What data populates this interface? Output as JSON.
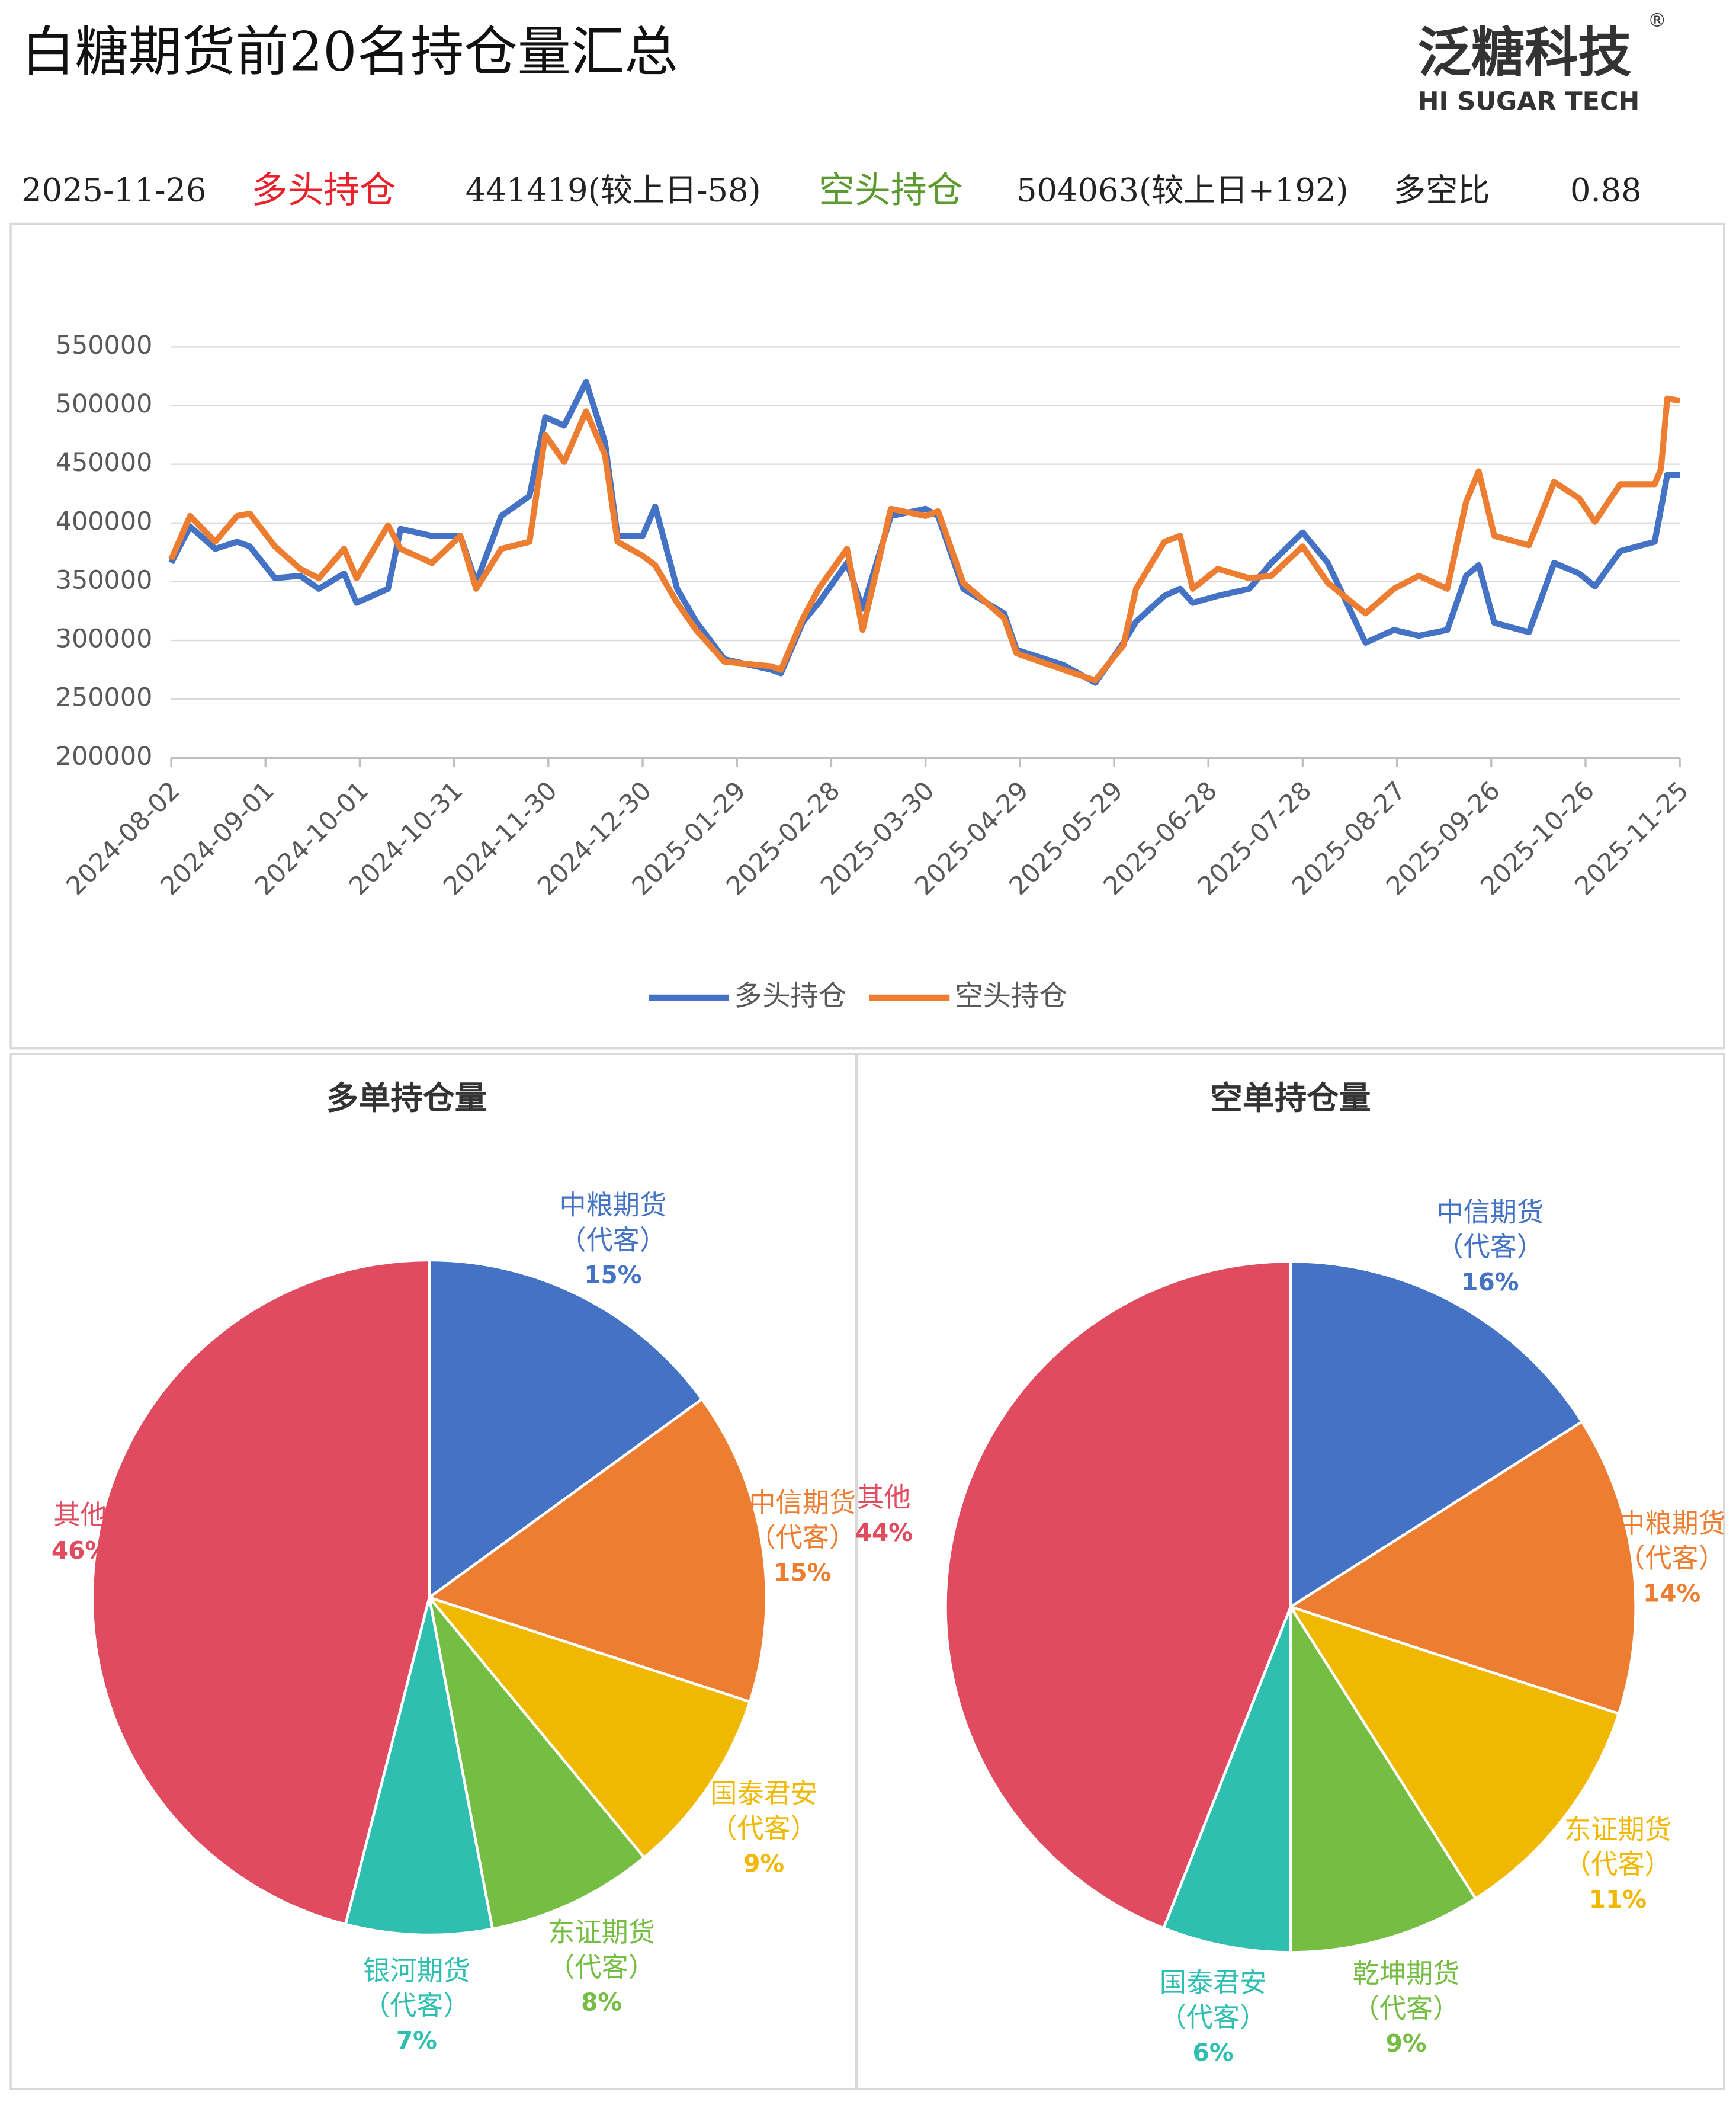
{
  "header": {
    "title": "白糖期货前20名持仓量汇总",
    "logo": "泛糖科技",
    "logo_sub": "HI SUGAR TECH",
    "logo_mark": "®",
    "date": "2025-11-26",
    "long_label": "多头持仓",
    "long_value": "441419(较上日-58)",
    "short_label": "空头持仓",
    "short_value": "504063(较上日+192)",
    "ratio_label": "多空比",
    "ratio_value": "0.88"
  },
  "chart_data": [
    {
      "type": "line",
      "x": [
        "2024-08-02",
        "2024-08-08",
        "2024-08-16",
        "2024-08-23",
        "2024-08-27",
        "2024-09-04",
        "2024-09-12",
        "2024-09-18",
        "2024-09-26",
        "2024-09-30",
        "2024-10-10",
        "2024-10-14",
        "2024-10-24",
        "2024-11-02",
        "2024-11-07",
        "2024-11-15",
        "2024-11-24",
        "2024-11-29",
        "2024-12-05",
        "2024-12-12",
        "2024-12-18",
        "2024-12-22",
        "2024-12-30",
        "2025-01-03",
        "2025-01-10",
        "2025-01-16",
        "2025-01-25",
        "2025-02-09",
        "2025-02-12",
        "2025-02-19",
        "2025-02-24",
        "2025-03-05",
        "2025-03-10",
        "2025-03-19",
        "2025-03-30",
        "2025-04-03",
        "2025-04-11",
        "2025-04-24",
        "2025-04-28",
        "2025-05-13",
        "2025-05-23",
        "2025-06-01",
        "2025-06-05",
        "2025-06-14",
        "2025-06-19",
        "2025-06-23",
        "2025-07-01",
        "2025-07-11",
        "2025-07-18",
        "2025-07-28",
        "2025-08-05",
        "2025-08-17",
        "2025-08-26",
        "2025-09-03",
        "2025-09-12",
        "2025-09-18",
        "2025-09-22",
        "2025-09-27",
        "2025-10-08",
        "2025-10-16",
        "2025-10-24",
        "2025-10-29",
        "2025-11-06",
        "2025-11-17",
        "2025-11-19",
        "2025-11-21",
        "2025-11-25"
      ],
      "series": [
        {
          "name": "多头持仓",
          "color": "#4472c4",
          "values": [
            366000,
            397000,
            378000,
            384000,
            380000,
            353000,
            355000,
            344000,
            357000,
            332000,
            344000,
            395000,
            389000,
            389000,
            349000,
            406000,
            423000,
            490000,
            483000,
            520000,
            469000,
            389000,
            389000,
            414000,
            344000,
            316000,
            284000,
            275000,
            272000,
            316000,
            332000,
            366000,
            327000,
            406000,
            412000,
            406000,
            344000,
            323000,
            292000,
            279000,
            264000,
            298000,
            316000,
            338000,
            344000,
            332000,
            338000,
            344000,
            366000,
            392000,
            366000,
            298000,
            309000,
            304000,
            309000,
            355000,
            364000,
            315000,
            307000,
            366000,
            357000,
            346000,
            376000,
            384000,
            412000,
            441000,
            441000
          ]
        },
        {
          "name": "空头持仓",
          "color": "#ed7d31",
          "values": [
            369000,
            406000,
            384000,
            406000,
            408000,
            380000,
            361000,
            353000,
            378000,
            353000,
            398000,
            378000,
            366000,
            389000,
            344000,
            378000,
            384000,
            475000,
            452000,
            495000,
            458000,
            384000,
            372000,
            364000,
            332000,
            309000,
            282000,
            278000,
            275000,
            319000,
            344000,
            378000,
            309000,
            412000,
            406000,
            410000,
            349000,
            319000,
            289000,
            275000,
            266000,
            296000,
            344000,
            384000,
            389000,
            344000,
            361000,
            353000,
            355000,
            380000,
            349000,
            323000,
            344000,
            355000,
            344000,
            418000,
            444000,
            389000,
            381000,
            435000,
            421000,
            401000,
            433000,
            433000,
            446000,
            506000,
            504000
          ]
        }
      ],
      "xlim": [
        "2024-08-02",
        "2025-11-25"
      ],
      "xticks": [
        "2024-08-02",
        "2024-09-01",
        "2024-10-01",
        "2024-10-31",
        "2024-11-30",
        "2024-12-30",
        "2025-01-29",
        "2025-02-28",
        "2025-03-30",
        "2025-04-29",
        "2025-05-29",
        "2025-06-28",
        "2025-07-28",
        "2025-08-27",
        "2025-09-26",
        "2025-10-26",
        "2025-11-25"
      ],
      "ylim": [
        200000,
        550000
      ],
      "yticks": [
        200000,
        250000,
        300000,
        350000,
        400000,
        450000,
        500000,
        550000
      ],
      "grid": true,
      "legend": "bottom"
    },
    {
      "type": "pie",
      "title": "多单持仓量",
      "categories": [
        "中粮期货（代客）",
        "中信期货（代客）",
        "国泰君安（代客）",
        "东证期货（代客）",
        "银河期货（代客）",
        "其他"
      ],
      "values": [
        15,
        15,
        9,
        8,
        7,
        46
      ],
      "value_labels": [
        "15%",
        "15%",
        "9%",
        "8%",
        "7%",
        "46%"
      ],
      "colors": [
        "#4472c4",
        "#ed7d31",
        "#f0b800",
        "#76bd43",
        "#2fbfb0",
        "#e04b5f"
      ]
    },
    {
      "type": "pie",
      "title": "空单持仓量",
      "categories": [
        "中信期货（代客）",
        "中粮期货（代客）",
        "东证期货（代客）",
        "乾坤期货（代客）",
        "国泰君安（代客）",
        "其他"
      ],
      "values": [
        16,
        14,
        11,
        9,
        6,
        44
      ],
      "value_labels": [
        "16%",
        "14%",
        "11%",
        "9%",
        "6%",
        "44%"
      ],
      "colors": [
        "#4472c4",
        "#ed7d31",
        "#f0b800",
        "#76bd43",
        "#2fbfb0",
        "#e04b5f"
      ]
    }
  ]
}
